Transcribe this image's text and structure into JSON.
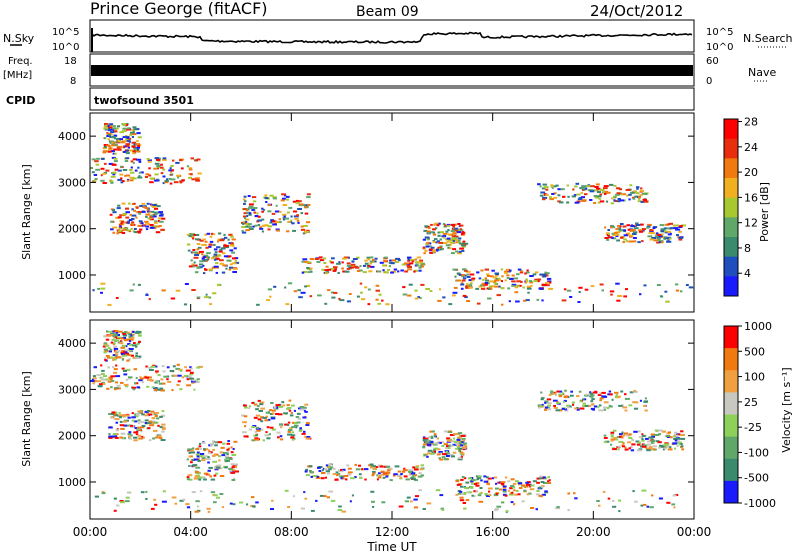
{
  "header": {
    "station": "Prince George (fitACF)",
    "beam": "Beam 09",
    "date": "24/Oct/2012"
  },
  "top_panel": {
    "left_label_1": "N.Sky",
    "left_label_2": "Freq.",
    "left_label_3": "[MHz]",
    "left_label_4": "CPID",
    "right_label_1": "N.Search",
    "right_label_2": "Nave",
    "sky_ticks": [
      "10^5",
      "10^0"
    ],
    "freq_ticks": [
      "18",
      "8"
    ],
    "nave_ticks": [
      "60",
      "0"
    ],
    "cpid_text": "twofsound 3501"
  },
  "chart_data": [
    {
      "type": "heatmap",
      "name": "power",
      "ylabel": "Slant Range [km]",
      "yticks": [
        "1000",
        "2000",
        "3000",
        "4000"
      ],
      "ylim": [
        200,
        4500
      ],
      "colorbar_label": "Power [dB]",
      "colorbar_ticks": [
        "4",
        "8",
        "12",
        "16",
        "20",
        "24",
        "28"
      ],
      "colors": [
        "#1a1aff",
        "#1f4fbf",
        "#3a8a6e",
        "#5fa86a",
        "#a8c830",
        "#f0b020",
        "#f07a10",
        "#e82e0c",
        "#ff0000"
      ]
    },
    {
      "type": "heatmap",
      "name": "velocity",
      "ylabel": "Slant Range [km]",
      "yticks": [
        "1000",
        "2000",
        "3000",
        "4000"
      ],
      "ylim": [
        200,
        4500
      ],
      "colorbar_label": "Velocity [m s⁻¹]",
      "colorbar_ticks": [
        "1000",
        "500",
        "100",
        "25",
        "-25",
        "-100",
        "-500",
        "-1000"
      ],
      "colors": [
        "#1a1aff",
        "#3a8a6e",
        "#5fa86a",
        "#8dd05a",
        "#c8c8c0",
        "#f0a040",
        "#f07a10",
        "#ff0000"
      ]
    }
  ],
  "xaxis": {
    "ticks": [
      "00:00",
      "04:00",
      "08:00",
      "12:00",
      "16:00",
      "20:00",
      "00:00"
    ],
    "label": "Time UT"
  },
  "colors": {
    "noise": "#000000",
    "axis": "#000000"
  }
}
